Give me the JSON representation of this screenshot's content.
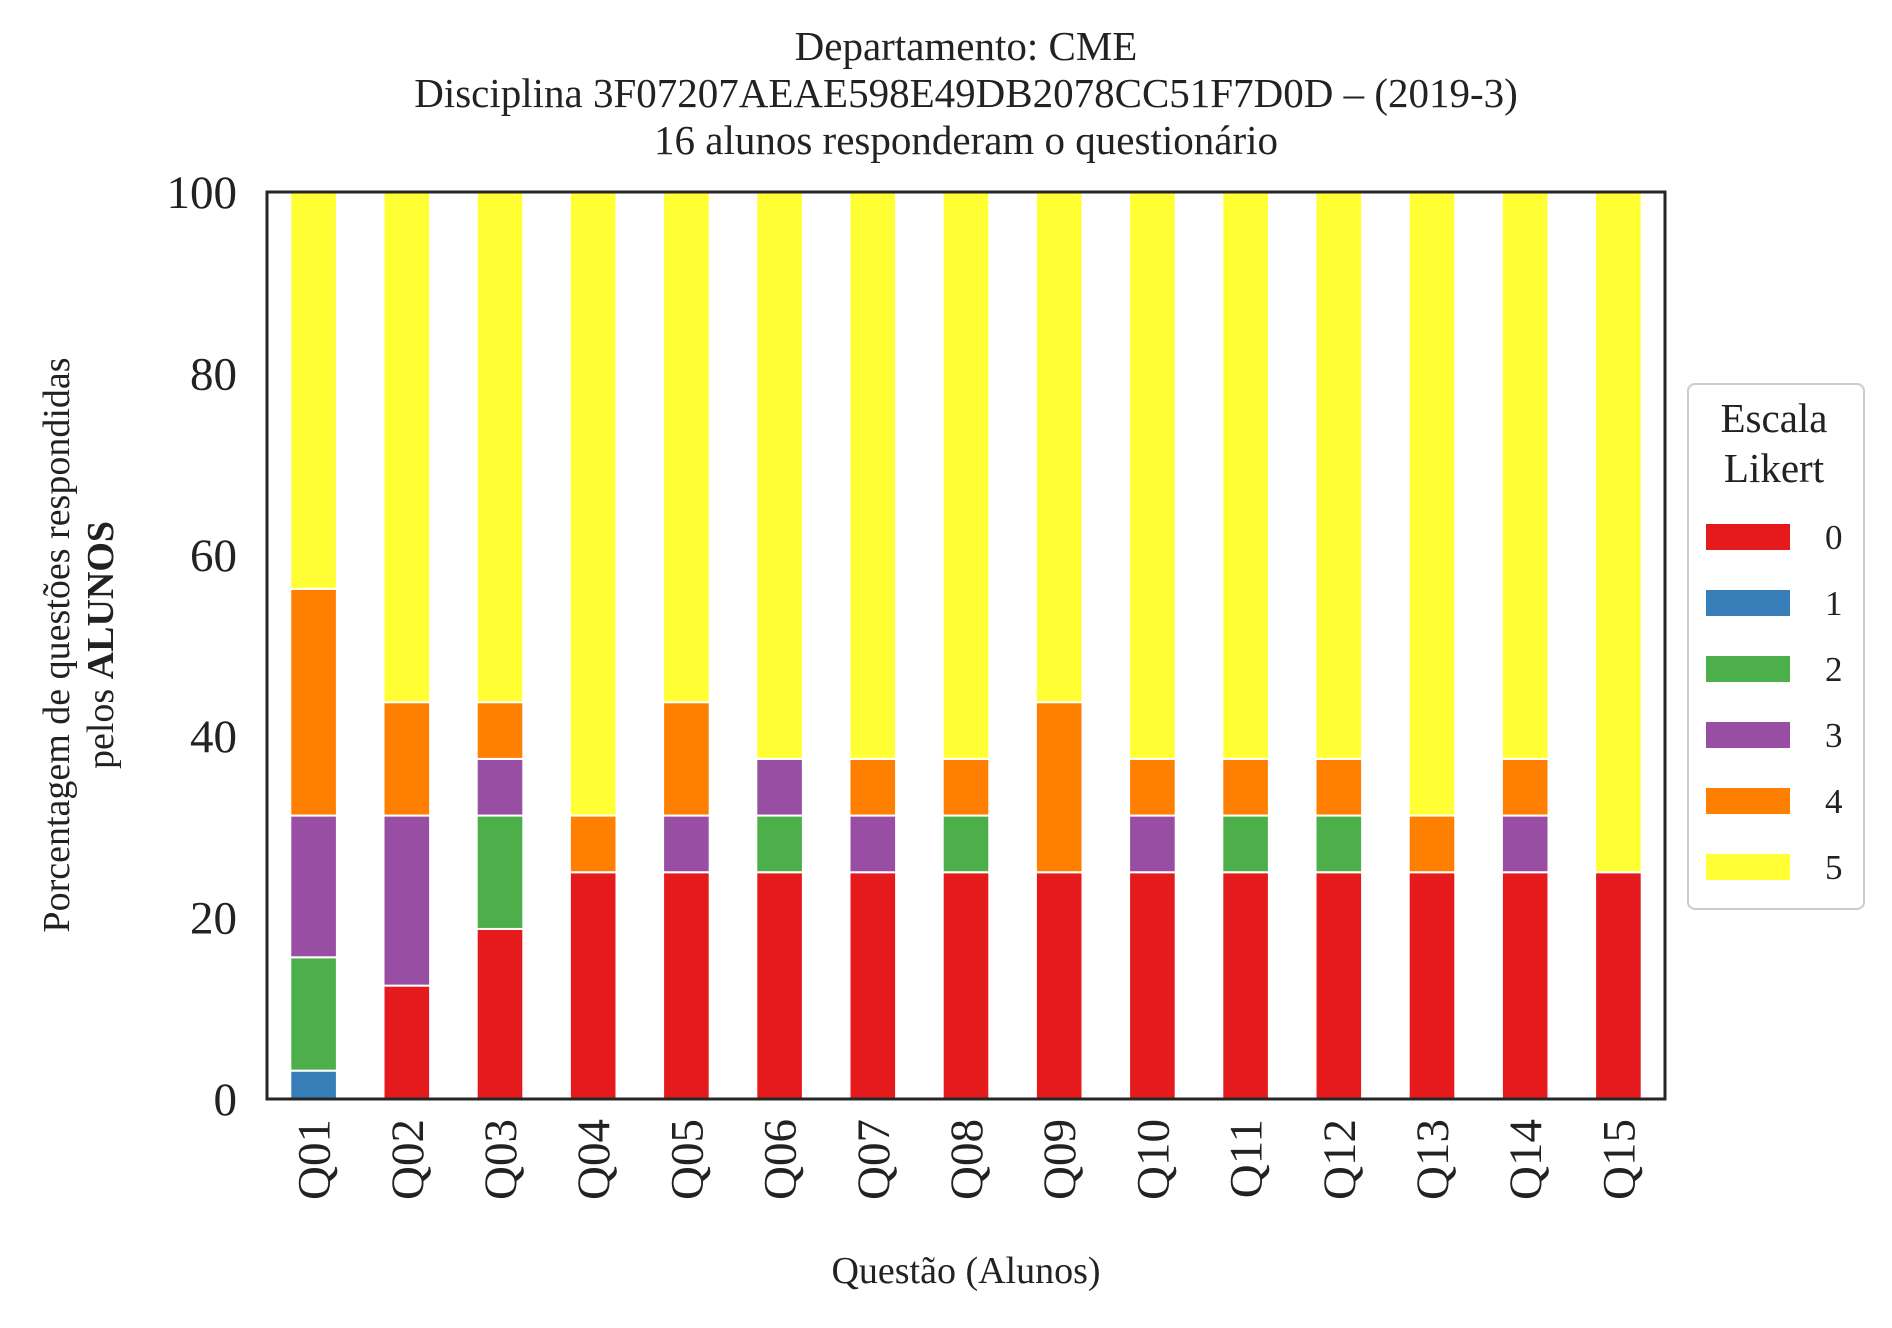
{
  "chart_data": {
    "type": "bar",
    "stacked": true,
    "title_lines": [
      "Departamento: CME",
      "Disciplina 3F07207AEAE598E49DB2078CC51F7D0D – (2019-3)",
      "16 alunos responderam o questionário"
    ],
    "xlabel": "Questão (Alunos)",
    "ylabel": {
      "line1": "Porcentagem de questões respondidas",
      "line2_prefix": "pelos ",
      "line2_bold": "ALUNOS"
    },
    "ylim": [
      0,
      100
    ],
    "yticks": [
      "0",
      "20",
      "40",
      "60",
      "80",
      "100"
    ],
    "grid": false,
    "categories": [
      "Q01",
      "Q02",
      "Q03",
      "Q04",
      "Q05",
      "Q06",
      "Q07",
      "Q08",
      "Q09",
      "Q10",
      "Q11",
      "Q12",
      "Q13",
      "Q14",
      "Q15"
    ],
    "legend": {
      "title_lines": [
        "Escala",
        "Likert"
      ],
      "placement": "right"
    },
    "series": [
      {
        "name": "0",
        "color": "#e41a1c",
        "values": [
          0,
          12.5,
          18.75,
          25,
          25,
          25,
          25,
          25,
          25,
          25,
          25,
          25,
          25,
          25,
          25
        ]
      },
      {
        "name": "1",
        "color": "#377eb8",
        "values": [
          3.125,
          0,
          0,
          0,
          0,
          0,
          0,
          0,
          0,
          0,
          0,
          0,
          0,
          0,
          0
        ]
      },
      {
        "name": "2",
        "color": "#4daf4a",
        "values": [
          12.5,
          0,
          12.5,
          0,
          0,
          6.25,
          0,
          6.25,
          0,
          0,
          6.25,
          6.25,
          0,
          0,
          0
        ]
      },
      {
        "name": "3",
        "color": "#984ea3",
        "values": [
          15.625,
          18.75,
          6.25,
          0,
          6.25,
          6.25,
          6.25,
          0,
          0,
          6.25,
          0,
          0,
          0,
          6.25,
          0
        ]
      },
      {
        "name": "4",
        "color": "#ff7f00",
        "values": [
          25,
          12.5,
          6.25,
          6.25,
          12.5,
          0,
          6.25,
          6.25,
          18.75,
          6.25,
          6.25,
          6.25,
          6.25,
          6.25,
          0
        ]
      },
      {
        "name": "5",
        "color": "#ffff33",
        "values": [
          43.75,
          56.25,
          56.25,
          68.75,
          56.25,
          62.5,
          62.5,
          62.5,
          56.25,
          62.5,
          62.5,
          62.5,
          68.75,
          62.5,
          75
        ]
      }
    ]
  }
}
